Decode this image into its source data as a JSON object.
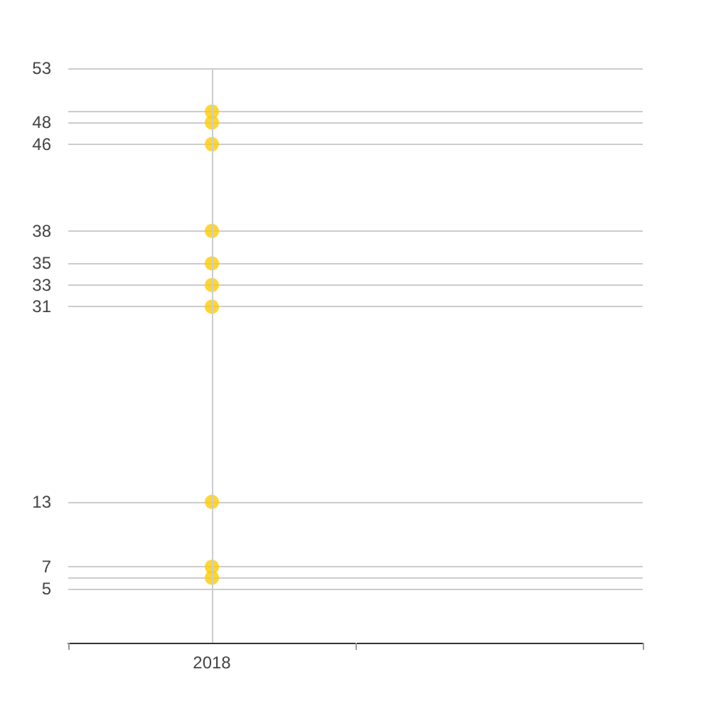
{
  "chart_data": {
    "type": "scatter",
    "categories": [
      "2018",
      null
    ],
    "series": [
      {
        "color": "#ffcc00",
        "values": [
          49,
          null
        ]
      },
      {
        "color": "#ffcc00",
        "values": [
          48,
          null
        ]
      },
      {
        "color": "#ffcc00",
        "values": [
          46,
          null
        ]
      },
      {
        "color": "#ffcc00",
        "values": [
          38,
          null
        ]
      },
      {
        "color": "#ffcc00",
        "values": [
          35,
          null
        ]
      },
      {
        "color": "#ffcc00",
        "values": [
          33,
          null
        ]
      },
      {
        "color": "#ffcc00",
        "values": [
          31,
          null
        ]
      },
      {
        "color": "#ffcc00",
        "values": [
          13,
          null
        ]
      },
      {
        "color": "#ffcc00",
        "values": [
          7,
          null
        ]
      },
      {
        "color": "#ffcc00",
        "values": [
          6,
          null
        ]
      }
    ],
    "ylim": [
      0,
      53
    ],
    "yticks": [
      5,
      {
        "value": 6,
        "label": null
      },
      7,
      13,
      31,
      33,
      35,
      38,
      46,
      48,
      {
        "value": 49,
        "label": null
      },
      53
    ],
    "grid": true,
    "marker": "circle"
  }
}
